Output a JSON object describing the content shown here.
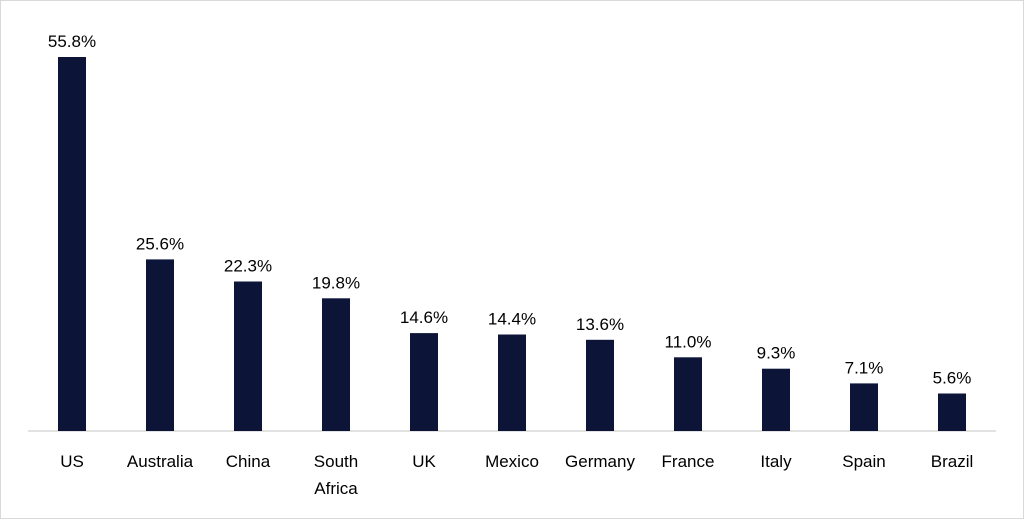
{
  "chart_data": {
    "type": "bar",
    "title": "",
    "xlabel": "",
    "ylabel": "",
    "categories": [
      "US",
      "Australia",
      "China",
      "South Africa",
      "UK",
      "Mexico",
      "Germany",
      "France",
      "Italy",
      "Spain",
      "Brazil"
    ],
    "values": [
      55.8,
      25.6,
      22.3,
      19.8,
      14.6,
      14.4,
      13.6,
      11.0,
      9.3,
      7.1,
      5.6
    ],
    "value_labels": [
      "55.8%",
      "25.6%",
      "22.3%",
      "19.8%",
      "14.6%",
      "14.4%",
      "13.6%",
      "11.0%",
      "9.3%",
      "7.1%",
      "5.6%"
    ],
    "unit": "%",
    "ylim": [
      0,
      55.8
    ],
    "grid": false,
    "legend": "none",
    "bar_color": "#0c1538",
    "axis_color": "#d9d9d9"
  }
}
